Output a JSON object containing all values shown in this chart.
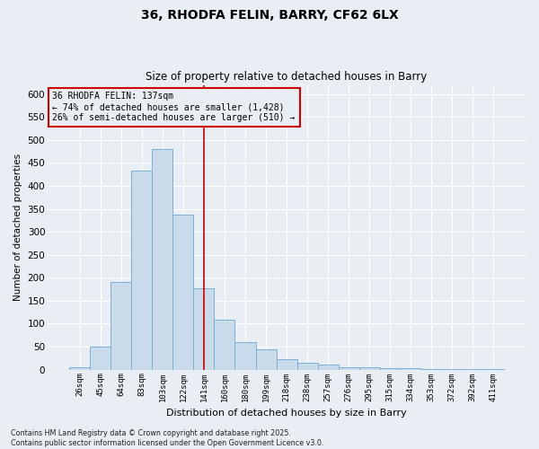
{
  "title_line1": "36, RHODFA FELIN, BARRY, CF62 6LX",
  "title_line2": "Size of property relative to detached houses in Barry",
  "xlabel": "Distribution of detached houses by size in Barry",
  "ylabel": "Number of detached properties",
  "categories": [
    "26sqm",
    "45sqm",
    "64sqm",
    "83sqm",
    "103sqm",
    "122sqm",
    "141sqm",
    "160sqm",
    "180sqm",
    "199sqm",
    "218sqm",
    "238sqm",
    "257sqm",
    "276sqm",
    "295sqm",
    "315sqm",
    "334sqm",
    "353sqm",
    "372sqm",
    "392sqm",
    "411sqm"
  ],
  "values": [
    5,
    50,
    190,
    433,
    480,
    338,
    178,
    108,
    60,
    45,
    22,
    15,
    12,
    5,
    5,
    3,
    3,
    2,
    2,
    2,
    2
  ],
  "bar_color": "#c9daea",
  "bar_edge_color": "#7aafd4",
  "vline_bar_index": 6,
  "vline_color": "#cc0000",
  "ylim": [
    0,
    620
  ],
  "yticks": [
    0,
    50,
    100,
    150,
    200,
    250,
    300,
    350,
    400,
    450,
    500,
    550,
    600
  ],
  "annotation_text": "36 RHODFA FELIN: 137sqm\n← 74% of detached houses are smaller (1,428)\n26% of semi-detached houses are larger (510) →",
  "annotation_box_color": "#cc0000",
  "footnote": "Contains HM Land Registry data © Crown copyright and database right 2025.\nContains public sector information licensed under the Open Government Licence v3.0.",
  "bg_color": "#e8eef4",
  "grid_color": "#ccd6e0"
}
